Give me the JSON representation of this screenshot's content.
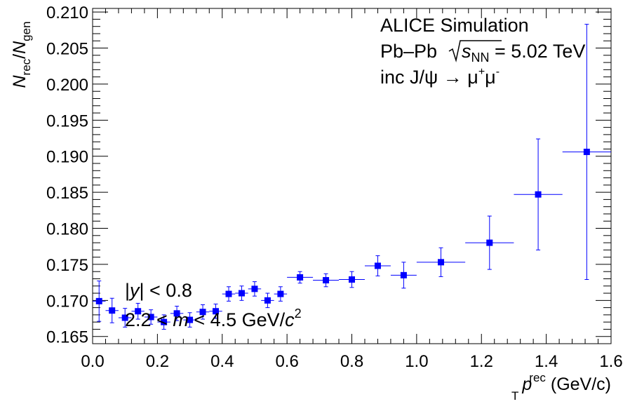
{
  "chart_data": {
    "type": "scatter",
    "title": "",
    "xlabel": {
      "base": "p",
      "sub": "T",
      "sup": "rec",
      "unit": " (GeV/c)"
    },
    "ylabel": {
      "num": "N",
      "num_sub": "rec",
      "den": "N",
      "den_sub": "gen"
    },
    "xlim": [
      0.0,
      1.6
    ],
    "ylim": [
      0.164,
      0.2105
    ],
    "x_ticks": [
      0.0,
      0.2,
      0.4,
      0.6,
      0.8,
      1.0,
      1.2,
      1.4,
      1.6
    ],
    "x_tick_labels": [
      "0.0",
      "0.2",
      "0.4",
      "0.6",
      "0.8",
      "1.0",
      "1.2",
      "1.4",
      "1.6"
    ],
    "y_ticks": [
      0.165,
      0.17,
      0.175,
      0.18,
      0.185,
      0.19,
      0.195,
      0.2,
      0.205,
      0.21
    ],
    "y_tick_labels": [
      "0.165",
      "0.170",
      "0.175",
      "0.180",
      "0.185",
      "0.190",
      "0.195",
      "0.200",
      "0.205",
      "0.210"
    ],
    "grid": false,
    "marker_color": "#0000ff",
    "annotations": {
      "line1": "ALICE Simulation",
      "line2_prefix": "Pb–Pb ",
      "line2_var": "s",
      "line2_sub": "NN",
      "line2_suffix": " = 5.02 TeV",
      "line3_prefix": "inc J/ψ → μ",
      "line3_sup1": "+",
      "line3_mid": "μ",
      "line3_sup2": "-",
      "cut1_open": "|",
      "cut1_var": "y",
      "cut1_close": "| < 0.8",
      "cut2_prefix": "2.2 < ",
      "cut2_var": "m",
      "cut2_mid": " < 4.5 GeV/",
      "cut2_c": "c",
      "cut2_sup": "2"
    },
    "points": [
      {
        "x": 0.02,
        "y": 0.1699,
        "xerr": 0.02,
        "yerr": 0.0028
      },
      {
        "x": 0.06,
        "y": 0.1686,
        "xerr": 0.02,
        "yerr": 0.0017
      },
      {
        "x": 0.1,
        "y": 0.1676,
        "xerr": 0.02,
        "yerr": 0.0013
      },
      {
        "x": 0.14,
        "y": 0.1685,
        "xerr": 0.02,
        "yerr": 0.0011
      },
      {
        "x": 0.18,
        "y": 0.1677,
        "xerr": 0.02,
        "yerr": 0.001
      },
      {
        "x": 0.22,
        "y": 0.167,
        "xerr": 0.02,
        "yerr": 0.001
      },
      {
        "x": 0.26,
        "y": 0.1682,
        "xerr": 0.02,
        "yerr": 0.001
      },
      {
        "x": 0.3,
        "y": 0.1673,
        "xerr": 0.02,
        "yerr": 0.001
      },
      {
        "x": 0.34,
        "y": 0.1684,
        "xerr": 0.02,
        "yerr": 0.001
      },
      {
        "x": 0.38,
        "y": 0.1685,
        "xerr": 0.02,
        "yerr": 0.001
      },
      {
        "x": 0.42,
        "y": 0.1709,
        "xerr": 0.02,
        "yerr": 0.001
      },
      {
        "x": 0.46,
        "y": 0.171,
        "xerr": 0.02,
        "yerr": 0.001
      },
      {
        "x": 0.5,
        "y": 0.1716,
        "xerr": 0.02,
        "yerr": 0.001
      },
      {
        "x": 0.54,
        "y": 0.17,
        "xerr": 0.02,
        "yerr": 0.001
      },
      {
        "x": 0.58,
        "y": 0.1709,
        "xerr": 0.02,
        "yerr": 0.001
      },
      {
        "x": 0.64,
        "y": 0.1732,
        "xerr": 0.04,
        "yerr": 0.0008
      },
      {
        "x": 0.72,
        "y": 0.1728,
        "xerr": 0.04,
        "yerr": 0.0009
      },
      {
        "x": 0.8,
        "y": 0.1729,
        "xerr": 0.04,
        "yerr": 0.0011
      },
      {
        "x": 0.88,
        "y": 0.1748,
        "xerr": 0.04,
        "yerr": 0.0014
      },
      {
        "x": 0.96,
        "y": 0.1735,
        "xerr": 0.04,
        "yerr": 0.0018
      },
      {
        "x": 1.075,
        "y": 0.1753,
        "xerr": 0.075,
        "yerr": 0.002
      },
      {
        "x": 1.225,
        "y": 0.178,
        "xerr": 0.075,
        "yerr": 0.0037
      },
      {
        "x": 1.375,
        "y": 0.1847,
        "xerr": 0.075,
        "yerr": 0.0077
      },
      {
        "x": 1.525,
        "y": 0.1906,
        "xerr": 0.075,
        "yerr": 0.0177
      }
    ]
  }
}
